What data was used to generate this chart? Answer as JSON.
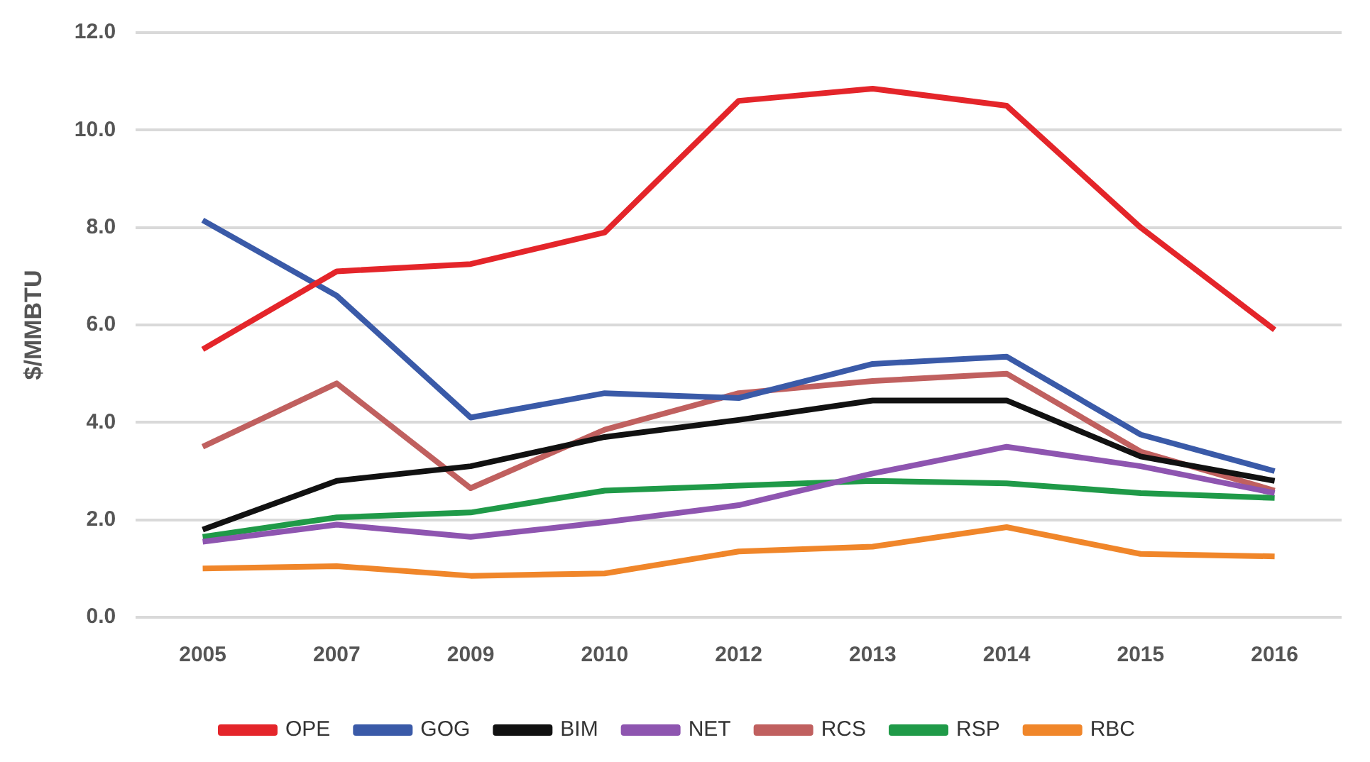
{
  "chart_data": {
    "type": "line",
    "ylabel": "$/MMBTU",
    "categories": [
      "2005",
      "2007",
      "2009",
      "2010",
      "2012",
      "2013",
      "2014",
      "2015",
      "2016"
    ],
    "ylim": [
      0,
      12
    ],
    "yticks": [
      {
        "value": 0,
        "label": "0.0"
      },
      {
        "value": 2,
        "label": "2.0"
      },
      {
        "value": 4,
        "label": "4.0"
      },
      {
        "value": 6,
        "label": "6.0"
      },
      {
        "value": 8,
        "label": "8.0"
      },
      {
        "value": 10,
        "label": "10.0"
      },
      {
        "value": 12,
        "label": "12.0"
      }
    ],
    "grid": "y",
    "legend": "bottom",
    "marker": "none",
    "line_style": "solid",
    "series": [
      {
        "name": "OPE",
        "color": "#e4252a",
        "values": [
          5.5,
          7.1,
          7.25,
          7.9,
          10.6,
          10.85,
          10.5,
          8.0,
          5.9
        ]
      },
      {
        "name": "GOG",
        "color": "#3a5aa8",
        "values": [
          8.15,
          6.6,
          4.1,
          4.6,
          4.5,
          5.2,
          5.35,
          3.75,
          3.0
        ]
      },
      {
        "name": "BIM",
        "color": "#111111",
        "values": [
          1.8,
          2.8,
          3.1,
          3.7,
          4.05,
          4.45,
          4.45,
          3.3,
          2.8
        ]
      },
      {
        "name": "NET",
        "color": "#8e55b0",
        "values": [
          1.55,
          1.9,
          1.65,
          1.95,
          2.3,
          2.95,
          3.5,
          3.1,
          2.55
        ]
      },
      {
        "name": "RCS",
        "color": "#c0605f",
        "values": [
          3.5,
          4.8,
          2.65,
          3.85,
          4.6,
          4.85,
          5.0,
          3.4,
          2.6
        ]
      },
      {
        "name": "RSP",
        "color": "#1f9a48",
        "values": [
          1.65,
          2.05,
          2.15,
          2.6,
          2.7,
          2.8,
          2.75,
          2.55,
          2.45
        ]
      },
      {
        "name": "RBC",
        "color": "#f0862a",
        "values": [
          1.0,
          1.05,
          0.85,
          0.9,
          1.35,
          1.45,
          1.85,
          1.3,
          1.25
        ]
      }
    ]
  }
}
